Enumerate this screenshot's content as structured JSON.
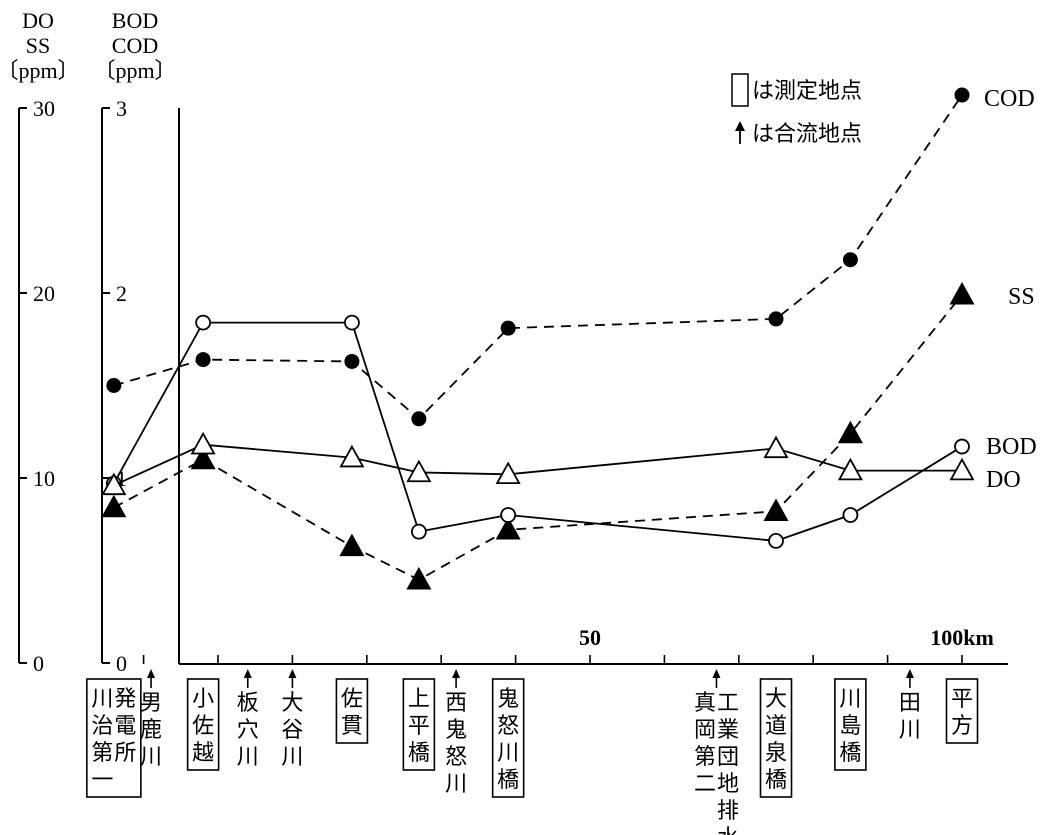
{
  "chart_data": {
    "type": "line",
    "left_axis": {
      "label_lines": [
        "DO",
        "SS",
        "〔ppm〕"
      ],
      "ticks": [
        0,
        10,
        20,
        30
      ],
      "range": [
        0,
        30
      ]
    },
    "right_axis": {
      "label_lines": [
        "BOD",
        "COD",
        "〔ppm〕"
      ],
      "ticks": [
        0,
        1,
        2,
        3
      ],
      "range": [
        0,
        3
      ]
    },
    "x_unit_ticks": [
      {
        "km": 0,
        "label": ""
      },
      {
        "km": 50,
        "label": "50"
      },
      {
        "km": 100,
        "label": "100km"
      }
    ],
    "legend": [
      "は測定地点",
      "は合流地点"
    ],
    "stations": [
      {
        "km": -14,
        "text": "発電所\n川治第一",
        "type": "measure"
      },
      {
        "km": -9,
        "text": "男鹿川",
        "type": "confluence"
      },
      {
        "km": -2,
        "text": "小佐越",
        "type": "measure"
      },
      {
        "km": 4,
        "text": "板穴川",
        "type": "confluence"
      },
      {
        "km": 10,
        "text": "大谷川",
        "type": "confluence"
      },
      {
        "km": 18,
        "text": "佐貫",
        "type": "measure"
      },
      {
        "km": 27,
        "text": "上平橋",
        "type": "measure"
      },
      {
        "km": 32,
        "text": "西鬼怒川",
        "type": "confluence"
      },
      {
        "km": 39,
        "text": "鬼怒川橋",
        "type": "measure"
      },
      {
        "km": 67,
        "text": "工業団地排水\n真岡第二",
        "type": "confluence"
      },
      {
        "km": 75,
        "text": "大道泉橋",
        "type": "measure"
      },
      {
        "km": 85,
        "text": "川島橋",
        "type": "measure"
      },
      {
        "km": 93,
        "text": "田川",
        "type": "confluence"
      },
      {
        "km": 100,
        "text": "平方",
        "type": "measure"
      }
    ],
    "series": [
      {
        "name": "COD",
        "axis": "right",
        "marker": "filled-circle",
        "line": "dashed",
        "x": [
          -14,
          -2,
          18,
          27,
          39,
          75,
          85,
          100
        ],
        "values": [
          1.5,
          1.64,
          1.63,
          1.32,
          1.81,
          1.86,
          2.18,
          3.07
        ]
      },
      {
        "name": "SS",
        "axis": "left",
        "marker": "filled-triangle",
        "line": "dashed",
        "x": [
          -14,
          -2,
          18,
          27,
          39,
          75,
          85,
          100
        ],
        "values": [
          8.4,
          11.0,
          6.3,
          4.5,
          7.2,
          8.2,
          12.4,
          19.9
        ]
      },
      {
        "name": "BOD",
        "axis": "right",
        "marker": "open-circle",
        "line": "solid",
        "x": [
          -14,
          -2,
          18,
          27,
          39,
          75,
          85,
          100
        ],
        "values": [
          0.97,
          1.84,
          1.84,
          0.71,
          0.8,
          0.66,
          0.8,
          1.17
        ]
      },
      {
        "name": "DO",
        "axis": "left",
        "marker": "open-triangle",
        "line": "solid",
        "x": [
          -14,
          -2,
          18,
          27,
          39,
          75,
          85,
          100
        ],
        "values": [
          9.6,
          11.8,
          11.1,
          10.3,
          10.2,
          11.6,
          10.4,
          10.4
        ]
      }
    ]
  }
}
